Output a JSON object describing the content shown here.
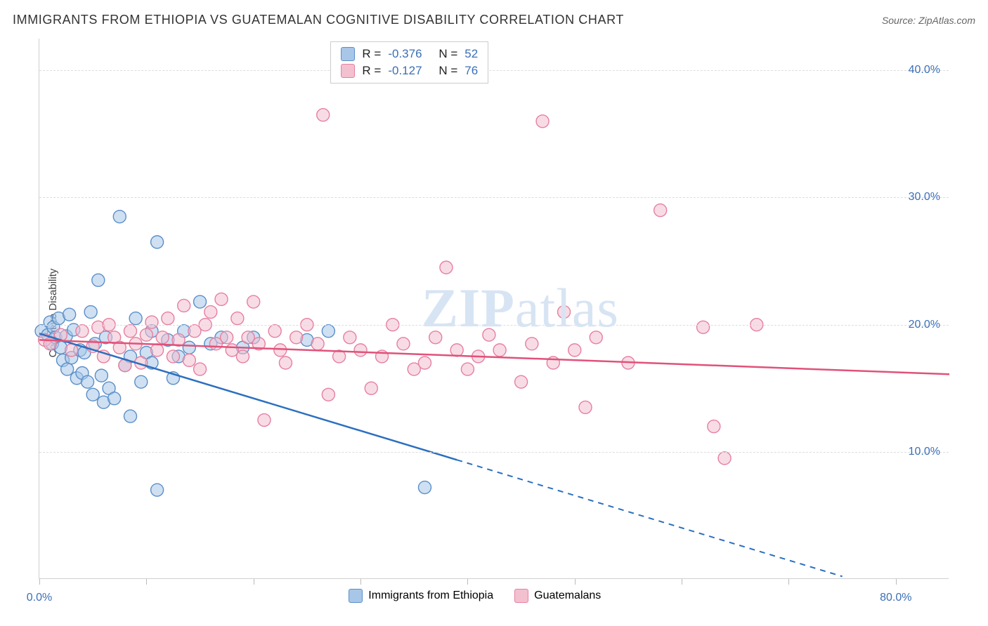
{
  "title": "IMMIGRANTS FROM ETHIOPIA VS GUATEMALAN COGNITIVE DISABILITY CORRELATION CHART",
  "source_prefix": "Source: ",
  "source_name": "ZipAtlas.com",
  "y_axis_label": "Cognitive Disability",
  "watermark": {
    "zip": "ZIP",
    "atlas": "atlas",
    "color": "#d7e4f3",
    "fontsize": 78
  },
  "chart": {
    "type": "scatter_with_regression",
    "background_color": "#ffffff",
    "grid_color": "#dddddd",
    "axis_color": "#d0d0d0",
    "tick_label_color": "#3b6fb6",
    "xlim": [
      0,
      85
    ],
    "ylim": [
      0,
      42.5
    ],
    "y_ticks": [
      {
        "v": 10,
        "label": "10.0%"
      },
      {
        "v": 20,
        "label": "20.0%"
      },
      {
        "v": 30,
        "label": "30.0%"
      },
      {
        "v": 40,
        "label": "40.0%"
      }
    ],
    "x_tick_positions": [
      0,
      10,
      20,
      30,
      40,
      50,
      60,
      70,
      80
    ],
    "x_labels": [
      {
        "v": 0,
        "label": "0.0%"
      },
      {
        "v": 80,
        "label": "80.0%"
      }
    ],
    "series": [
      {
        "name": "Immigrants from Ethiopia",
        "color_fill": "#a8c6e8",
        "color_stroke": "#5a8fc9",
        "marker_radius": 9,
        "fill_opacity": 0.55,
        "R": "-0.376",
        "N": "52",
        "regression": {
          "x1": 0,
          "y1": 19.3,
          "x2": 75,
          "y2": 0.2,
          "solid_until_x": 39,
          "color": "#2c6fbf",
          "width": 2.5
        },
        "points": [
          [
            0.2,
            19.5
          ],
          [
            0.8,
            19.2
          ],
          [
            1.0,
            20.2
          ],
          [
            1.2,
            18.5
          ],
          [
            1.3,
            19.8
          ],
          [
            1.5,
            19.0
          ],
          [
            1.8,
            20.5
          ],
          [
            2.0,
            18.2
          ],
          [
            2.2,
            17.2
          ],
          [
            2.5,
            19.1
          ],
          [
            2.6,
            16.5
          ],
          [
            2.8,
            20.8
          ],
          [
            3.0,
            17.4
          ],
          [
            3.2,
            19.6
          ],
          [
            3.5,
            15.8
          ],
          [
            3.8,
            18.0
          ],
          [
            4.0,
            16.2
          ],
          [
            4.2,
            17.8
          ],
          [
            4.5,
            15.5
          ],
          [
            4.8,
            21.0
          ],
          [
            5.0,
            14.5
          ],
          [
            5.2,
            18.5
          ],
          [
            5.5,
            23.5
          ],
          [
            5.8,
            16.0
          ],
          [
            6.0,
            13.9
          ],
          [
            6.2,
            19.0
          ],
          [
            6.5,
            15.0
          ],
          [
            7.0,
            14.2
          ],
          [
            7.5,
            28.5
          ],
          [
            8.0,
            16.8
          ],
          [
            8.5,
            17.5
          ],
          [
            8.5,
            12.8
          ],
          [
            9.0,
            20.5
          ],
          [
            9.5,
            15.5
          ],
          [
            10.0,
            17.8
          ],
          [
            10.5,
            17.0
          ],
          [
            10.5,
            19.5
          ],
          [
            11.0,
            26.5
          ],
          [
            11.0,
            7.0
          ],
          [
            12.0,
            18.8
          ],
          [
            12.5,
            15.8
          ],
          [
            13.0,
            17.5
          ],
          [
            13.5,
            19.5
          ],
          [
            14.0,
            18.2
          ],
          [
            15.0,
            21.8
          ],
          [
            16.0,
            18.5
          ],
          [
            17.0,
            19.0
          ],
          [
            19.0,
            18.2
          ],
          [
            20.0,
            19.0
          ],
          [
            25.0,
            18.8
          ],
          [
            27.0,
            19.5
          ],
          [
            36.0,
            7.2
          ]
        ]
      },
      {
        "name": "Guatemalans",
        "color_fill": "#f3c0cf",
        "color_stroke": "#e77fa0",
        "marker_radius": 9,
        "fill_opacity": 0.55,
        "R": "-0.127",
        "N": "76",
        "regression": {
          "x1": 0,
          "y1": 18.8,
          "x2": 85,
          "y2": 16.1,
          "solid_until_x": 85,
          "color": "#e0527a",
          "width": 2.5
        },
        "points": [
          [
            0.5,
            18.8
          ],
          [
            1.0,
            18.5
          ],
          [
            2.0,
            19.2
          ],
          [
            3.0,
            18.0
          ],
          [
            4.0,
            19.5
          ],
          [
            5.0,
            18.3
          ],
          [
            5.5,
            19.8
          ],
          [
            6.0,
            17.5
          ],
          [
            6.5,
            20.0
          ],
          [
            7.0,
            19.0
          ],
          [
            7.5,
            18.2
          ],
          [
            8.0,
            16.8
          ],
          [
            8.5,
            19.5
          ],
          [
            9.0,
            18.5
          ],
          [
            9.5,
            17.0
          ],
          [
            10.0,
            19.2
          ],
          [
            10.5,
            20.2
          ],
          [
            11.0,
            18.0
          ],
          [
            11.5,
            19.0
          ],
          [
            12.0,
            20.5
          ],
          [
            12.5,
            17.5
          ],
          [
            13.0,
            18.8
          ],
          [
            13.5,
            21.5
          ],
          [
            14.0,
            17.2
          ],
          [
            14.5,
            19.5
          ],
          [
            15.0,
            16.5
          ],
          [
            15.5,
            20.0
          ],
          [
            16.0,
            21.0
          ],
          [
            16.5,
            18.5
          ],
          [
            17.0,
            22.0
          ],
          [
            17.5,
            19.0
          ],
          [
            18.0,
            18.0
          ],
          [
            18.5,
            20.5
          ],
          [
            19.0,
            17.5
          ],
          [
            19.5,
            19.0
          ],
          [
            20.0,
            21.8
          ],
          [
            20.5,
            18.5
          ],
          [
            21.0,
            12.5
          ],
          [
            22.0,
            19.5
          ],
          [
            22.5,
            18.0
          ],
          [
            23.0,
            17.0
          ],
          [
            24.0,
            19.0
          ],
          [
            25.0,
            20.0
          ],
          [
            26.0,
            18.5
          ],
          [
            26.5,
            36.5
          ],
          [
            27.0,
            14.5
          ],
          [
            28.0,
            17.5
          ],
          [
            29.0,
            19.0
          ],
          [
            30.0,
            18.0
          ],
          [
            31.0,
            15.0
          ],
          [
            32.0,
            17.5
          ],
          [
            33.0,
            20.0
          ],
          [
            34.0,
            18.5
          ],
          [
            35.0,
            16.5
          ],
          [
            36.0,
            17.0
          ],
          [
            37.0,
            19.0
          ],
          [
            38.0,
            24.5
          ],
          [
            39.0,
            18.0
          ],
          [
            40.0,
            16.5
          ],
          [
            41.0,
            17.5
          ],
          [
            42.0,
            19.2
          ],
          [
            43.0,
            18.0
          ],
          [
            45.0,
            15.5
          ],
          [
            46.0,
            18.5
          ],
          [
            47.0,
            36.0
          ],
          [
            48.0,
            17.0
          ],
          [
            49.0,
            21.0
          ],
          [
            50.0,
            18.0
          ],
          [
            51.0,
            13.5
          ],
          [
            52.0,
            19.0
          ],
          [
            55.0,
            17.0
          ],
          [
            58.0,
            29.0
          ],
          [
            62.0,
            19.8
          ],
          [
            63.0,
            12.0
          ],
          [
            64.0,
            9.5
          ],
          [
            67.0,
            20.0
          ]
        ]
      }
    ]
  },
  "legend_top": {
    "R_label": "R =",
    "N_label": "N ="
  },
  "legend_bottom": {
    "items": [
      {
        "label": "Immigrants from Ethiopia",
        "fill": "#a8c6e8",
        "stroke": "#5a8fc9"
      },
      {
        "label": "Guatemalans",
        "fill": "#f3c0cf",
        "stroke": "#e77fa0"
      }
    ]
  }
}
